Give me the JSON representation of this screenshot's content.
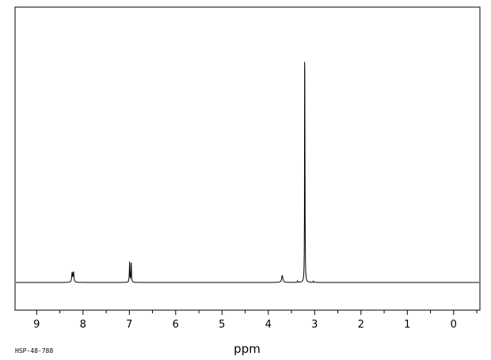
{
  "chart_data": {
    "type": "line",
    "title": "",
    "xlabel": "ppm",
    "ylabel": "",
    "xlim": [
      9.45,
      -0.55
    ],
    "x_reversed": true,
    "grid": false,
    "xticks": [
      9,
      8,
      7,
      6,
      5,
      4,
      3,
      2,
      1,
      0
    ],
    "xtick_labels": [
      "9",
      "8",
      "7",
      "6",
      "5",
      "4",
      "3",
      "2",
      "1",
      "0"
    ],
    "minor_step": 0.5,
    "ylim": [
      -0.11,
      1.0
    ],
    "peaks": [
      {
        "shift": 8.235,
        "height": 0.038,
        "width": 0.01
      },
      {
        "shift": 8.205,
        "height": 0.04,
        "width": 0.01
      },
      {
        "shift": 6.995,
        "height": 0.083,
        "width": 0.006
      },
      {
        "shift": 6.96,
        "height": 0.083,
        "width": 0.006
      },
      {
        "shift": 3.7,
        "height": 0.027,
        "width": 0.016
      },
      {
        "shift": 3.37,
        "height": 0.006,
        "width": 0.006
      },
      {
        "shift": 3.215,
        "height": 1.0,
        "width": 0.003
      },
      {
        "shift": 3.21,
        "height": 0.32,
        "width": 0.005
      },
      {
        "shift": 3.03,
        "height": 0.005,
        "width": 0.006
      }
    ]
  },
  "footer": {
    "code": "HSP-48-788"
  }
}
